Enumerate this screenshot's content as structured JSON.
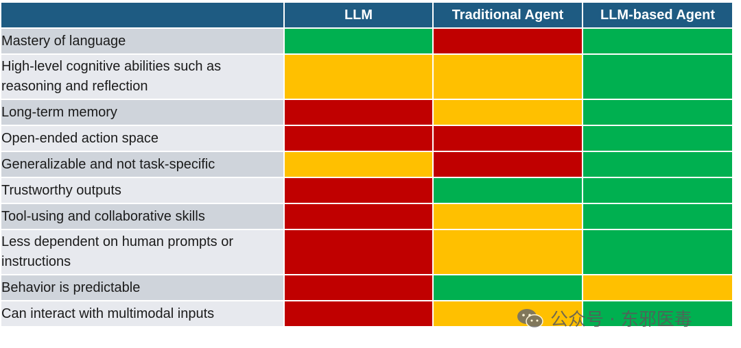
{
  "table": {
    "headers": [
      "",
      "LLM",
      "Traditional Agent",
      "LLM-based Agent"
    ],
    "rows": [
      {
        "label": "Mastery of language",
        "cells": [
          "green",
          "red",
          "green"
        ]
      },
      {
        "label": "High-level cognitive abilities such as reasoning and reflection",
        "cells": [
          "yellow",
          "yellow",
          "green"
        ]
      },
      {
        "label": "Long-term memory",
        "cells": [
          "red",
          "yellow",
          "green"
        ]
      },
      {
        "label": "Open-ended action space",
        "cells": [
          "red",
          "red",
          "green"
        ]
      },
      {
        "label": "Generalizable and not task-specific",
        "cells": [
          "yellow",
          "red",
          "green"
        ]
      },
      {
        "label": "Trustworthy outputs",
        "cells": [
          "red",
          "green",
          "green"
        ]
      },
      {
        "label": "Tool-using and collaborative skills",
        "cells": [
          "red",
          "yellow",
          "green"
        ]
      },
      {
        "label": "Less dependent on human prompts or instructions",
        "cells": [
          "red",
          "yellow",
          "green"
        ]
      },
      {
        "label": "Behavior is predictable",
        "cells": [
          "red",
          "green",
          "yellow"
        ]
      },
      {
        "label": "Can interact with multimodal inputs",
        "cells": [
          "red",
          "yellow",
          "green"
        ]
      }
    ]
  },
  "colors": {
    "header": "#1e5b82",
    "green": "#00b050",
    "red": "#c00000",
    "yellow": "#ffc000"
  },
  "watermark": {
    "text": "公众号 · 东邪医毒",
    "icon": "wechat-icon"
  }
}
